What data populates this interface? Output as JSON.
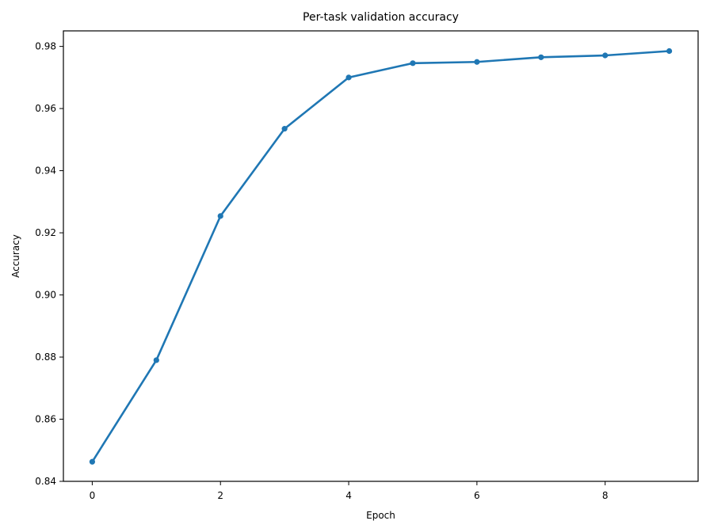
{
  "chart_data": {
    "type": "line",
    "title": "Per-task validation accuracy",
    "xlabel": "Epoch",
    "ylabel": "Accuracy",
    "xlim": [
      -0.45,
      9.45
    ],
    "ylim": [
      0.84,
      0.985
    ],
    "xticks": [
      0,
      2,
      4,
      6,
      8
    ],
    "xtick_labels": [
      "0",
      "2",
      "4",
      "6",
      "8"
    ],
    "yticks": [
      0.84,
      0.86,
      0.88,
      0.9,
      0.92,
      0.94,
      0.96,
      0.98
    ],
    "ytick_labels": [
      "0.84",
      "0.86",
      "0.88",
      "0.90",
      "0.92",
      "0.94",
      "0.96",
      "0.98"
    ],
    "grid": false,
    "series": [
      {
        "color": "#1f77b4",
        "x": [
          0,
          1,
          2,
          3,
          4,
          5,
          6,
          7,
          8,
          9
        ],
        "y": [
          0.8463,
          0.879,
          0.9254,
          0.9535,
          0.97,
          0.9746,
          0.975,
          0.9765,
          0.9771,
          0.9785
        ]
      }
    ]
  }
}
